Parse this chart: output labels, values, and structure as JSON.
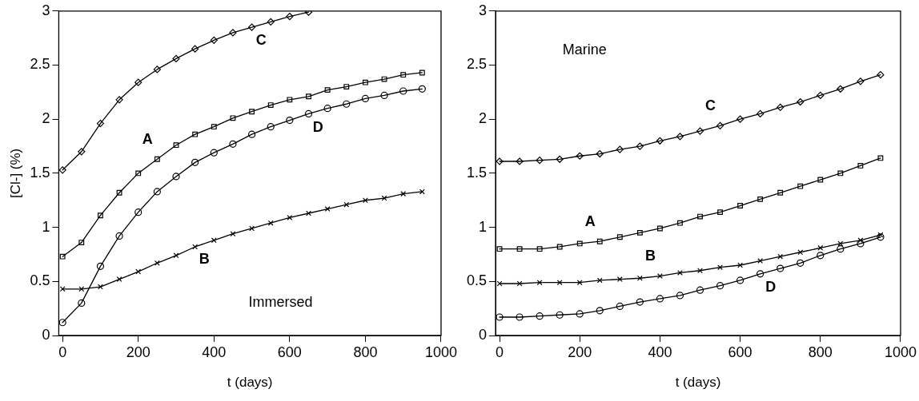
{
  "chart_data": [
    {
      "type": "line",
      "xlabel": "t (days)",
      "ylabel": "[Cl-] (%)",
      "xlim": [
        -10,
        1000
      ],
      "ylim": [
        0,
        3
      ],
      "xticks": [
        0,
        200,
        400,
        600,
        800,
        1000
      ],
      "yticks": [
        0,
        0.5,
        1,
        1.5,
        2,
        2.5,
        3
      ],
      "grid": false,
      "legend": false,
      "line_style": "solid",
      "annotations": [
        "Immersed"
      ],
      "x": [
        0,
        50,
        100,
        150,
        200,
        250,
        300,
        350,
        400,
        450,
        500,
        550,
        600,
        650,
        700,
        750,
        800,
        850,
        900,
        950
      ],
      "series": [
        {
          "name": "A",
          "color": "#000000",
          "marker": "square",
          "values": [
            0.73,
            0.86,
            1.11,
            1.32,
            1.5,
            1.63,
            1.76,
            1.86,
            1.93,
            2.01,
            2.07,
            2.13,
            2.18,
            2.21,
            2.27,
            2.3,
            2.34,
            2.37,
            2.41,
            2.43
          ]
        },
        {
          "name": "B",
          "color": "#000000",
          "marker": "cross",
          "values": [
            0.43,
            0.43,
            0.45,
            0.52,
            0.59,
            0.67,
            0.74,
            0.82,
            0.88,
            0.94,
            0.99,
            1.04,
            1.09,
            1.13,
            1.17,
            1.21,
            1.25,
            1.27,
            1.31,
            1.33
          ]
        },
        {
          "name": "C",
          "color": "#000000",
          "marker": "diamond",
          "values": [
            1.53,
            1.7,
            1.96,
            2.18,
            2.34,
            2.46,
            2.56,
            2.65,
            2.73,
            2.8,
            2.85,
            2.9,
            2.95,
            2.99,
            null,
            null,
            null,
            null,
            null,
            null
          ]
        },
        {
          "name": "D",
          "color": "#000000",
          "marker": "circle",
          "values": [
            0.12,
            0.3,
            0.64,
            0.92,
            1.14,
            1.33,
            1.47,
            1.6,
            1.69,
            1.77,
            1.86,
            1.93,
            1.99,
            2.05,
            2.1,
            2.14,
            2.19,
            2.22,
            2.26,
            2.28
          ]
        }
      ]
    },
    {
      "type": "line",
      "xlabel": "t (days)",
      "xlim": [
        -10,
        1000
      ],
      "ylim": [
        0,
        3
      ],
      "xticks": [
        0,
        200,
        400,
        600,
        800,
        1000
      ],
      "yticks": [
        0,
        0.5,
        1,
        1.5,
        2,
        2.5,
        3
      ],
      "grid": false,
      "legend": false,
      "line_style": "solid",
      "annotations": [
        "Marine"
      ],
      "x": [
        0,
        50,
        100,
        150,
        200,
        250,
        300,
        350,
        400,
        450,
        500,
        550,
        600,
        650,
        700,
        750,
        800,
        850,
        900,
        950
      ],
      "series": [
        {
          "name": "A",
          "color": "#000000",
          "marker": "square",
          "values": [
            0.8,
            0.8,
            0.8,
            0.82,
            0.85,
            0.87,
            0.91,
            0.95,
            0.99,
            1.04,
            1.1,
            1.14,
            1.2,
            1.26,
            1.32,
            1.38,
            1.44,
            1.5,
            1.57,
            1.64
          ]
        },
        {
          "name": "B",
          "color": "#000000",
          "marker": "cross",
          "values": [
            0.48,
            0.48,
            0.49,
            0.49,
            0.49,
            0.51,
            0.52,
            0.53,
            0.55,
            0.58,
            0.6,
            0.63,
            0.65,
            0.69,
            0.73,
            0.77,
            0.81,
            0.85,
            0.88,
            0.93
          ]
        },
        {
          "name": "C",
          "color": "#000000",
          "marker": "diamond",
          "values": [
            1.61,
            1.61,
            1.62,
            1.63,
            1.66,
            1.68,
            1.72,
            1.75,
            1.8,
            1.84,
            1.89,
            1.94,
            2.0,
            2.05,
            2.11,
            2.16,
            2.22,
            2.28,
            2.35,
            2.41
          ]
        },
        {
          "name": "D",
          "color": "#000000",
          "marker": "circle",
          "values": [
            0.17,
            0.17,
            0.18,
            0.19,
            0.2,
            0.23,
            0.27,
            0.31,
            0.34,
            0.37,
            0.42,
            0.46,
            0.51,
            0.57,
            0.62,
            0.67,
            0.74,
            0.8,
            0.85,
            0.91
          ]
        }
      ]
    }
  ]
}
